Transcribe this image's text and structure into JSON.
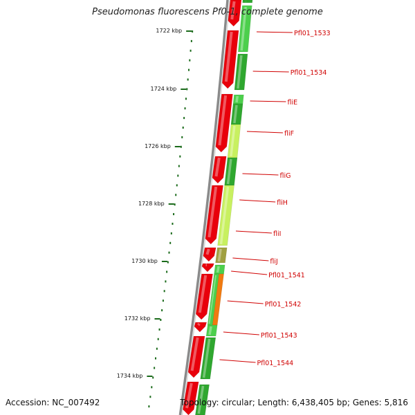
{
  "title": "Pseudomonas fluorescens Pf0-1, complete genome",
  "footer": {
    "accession": "Accession: NC_007492",
    "summary": "Topology: circular; Length: 6,438,405 bp; Genes: 5,816"
  },
  "ruler": {
    "labels": [
      "1722 kbp",
      "1724 kbp",
      "1726 kbp",
      "1728 kbp",
      "1730 kbp",
      "1732 kbp",
      "1734 kbp"
    ]
  },
  "genes": [
    "Pfl01_1533",
    "Pfl01_1534",
    "fliE",
    "fliF",
    "fliG",
    "fliH",
    "fliI",
    "fliJ",
    "Pfl01_1541",
    "Pfl01_1542",
    "Pfl01_1543",
    "Pfl01_1544"
  ],
  "colors": {
    "backbone": "#8a8a8a",
    "reverse_strand": "#e8000b",
    "forward_strand": "#2fa72f",
    "forward_light": "#4ccf4c",
    "forward_yellow": "#c8f060",
    "forward_orange": "#f07a10",
    "forward_olive": "#a0a040",
    "label": "#d00000",
    "tick": "#1a6a1a"
  }
}
